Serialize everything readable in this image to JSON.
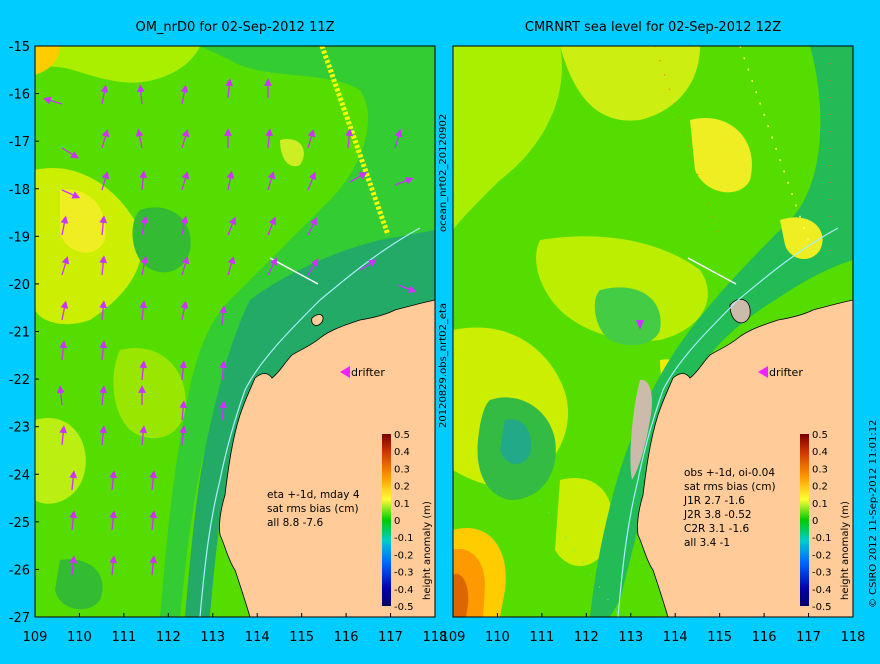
{
  "background_color": "#00ccff",
  "land_color": "#ffcc99",
  "left_panel": {
    "title": "OM_nrD0 for 02-Sep-2012 11Z",
    "annotation_lines": [
      "eta +-1d, mday 4",
      "sat rms bias (cm)",
      "all 8.8 -7.6"
    ],
    "drifter_label": "drifter",
    "colorbar": {
      "ticks": [
        "0.5",
        "0.4",
        "0.3",
        "0.2",
        "0.1",
        "0",
        "-0.1",
        "-0.2",
        "-0.3",
        "-0.4",
        "-0.5"
      ],
      "label": "height anomaly (m)"
    }
  },
  "right_panel": {
    "title": "CMRNRT sea level  for 02-Sep-2012 12Z",
    "annotation_lines": [
      "obs +-1d, oi-0.04",
      "sat rms bias (cm)",
      "J1R   2.7 -1.6",
      "J2R   3.8 -0.52",
      "C2R   3.1 -1.6",
      "all 3.4 -1"
    ],
    "drifter_label": "drifter",
    "colorbar": {
      "ticks": [
        "0.5",
        "0.4",
        "0.3",
        "0.2",
        "0.1",
        "0",
        "-0.1",
        "-0.2",
        "-0.3",
        "-0.4",
        "-0.5"
      ],
      "label": "height anomaly (m)"
    }
  },
  "lat_ticks": [
    "-15",
    "-16",
    "-17",
    "-18",
    "-19",
    "-20",
    "-21",
    "-22",
    "-23",
    "-24",
    "-25",
    "-26",
    "-27"
  ],
  "lon_ticks": [
    "109",
    "110",
    "111",
    "112",
    "113",
    "114",
    "115",
    "116",
    "117",
    "118"
  ],
  "side_label_top": "ocean_nrt02_20120902",
  "side_label_bottom": "20120829.obs_nrt02_eta",
  "right_edge_label": "© CSIRO 2012  11-Sep-2012 11:01:12"
}
